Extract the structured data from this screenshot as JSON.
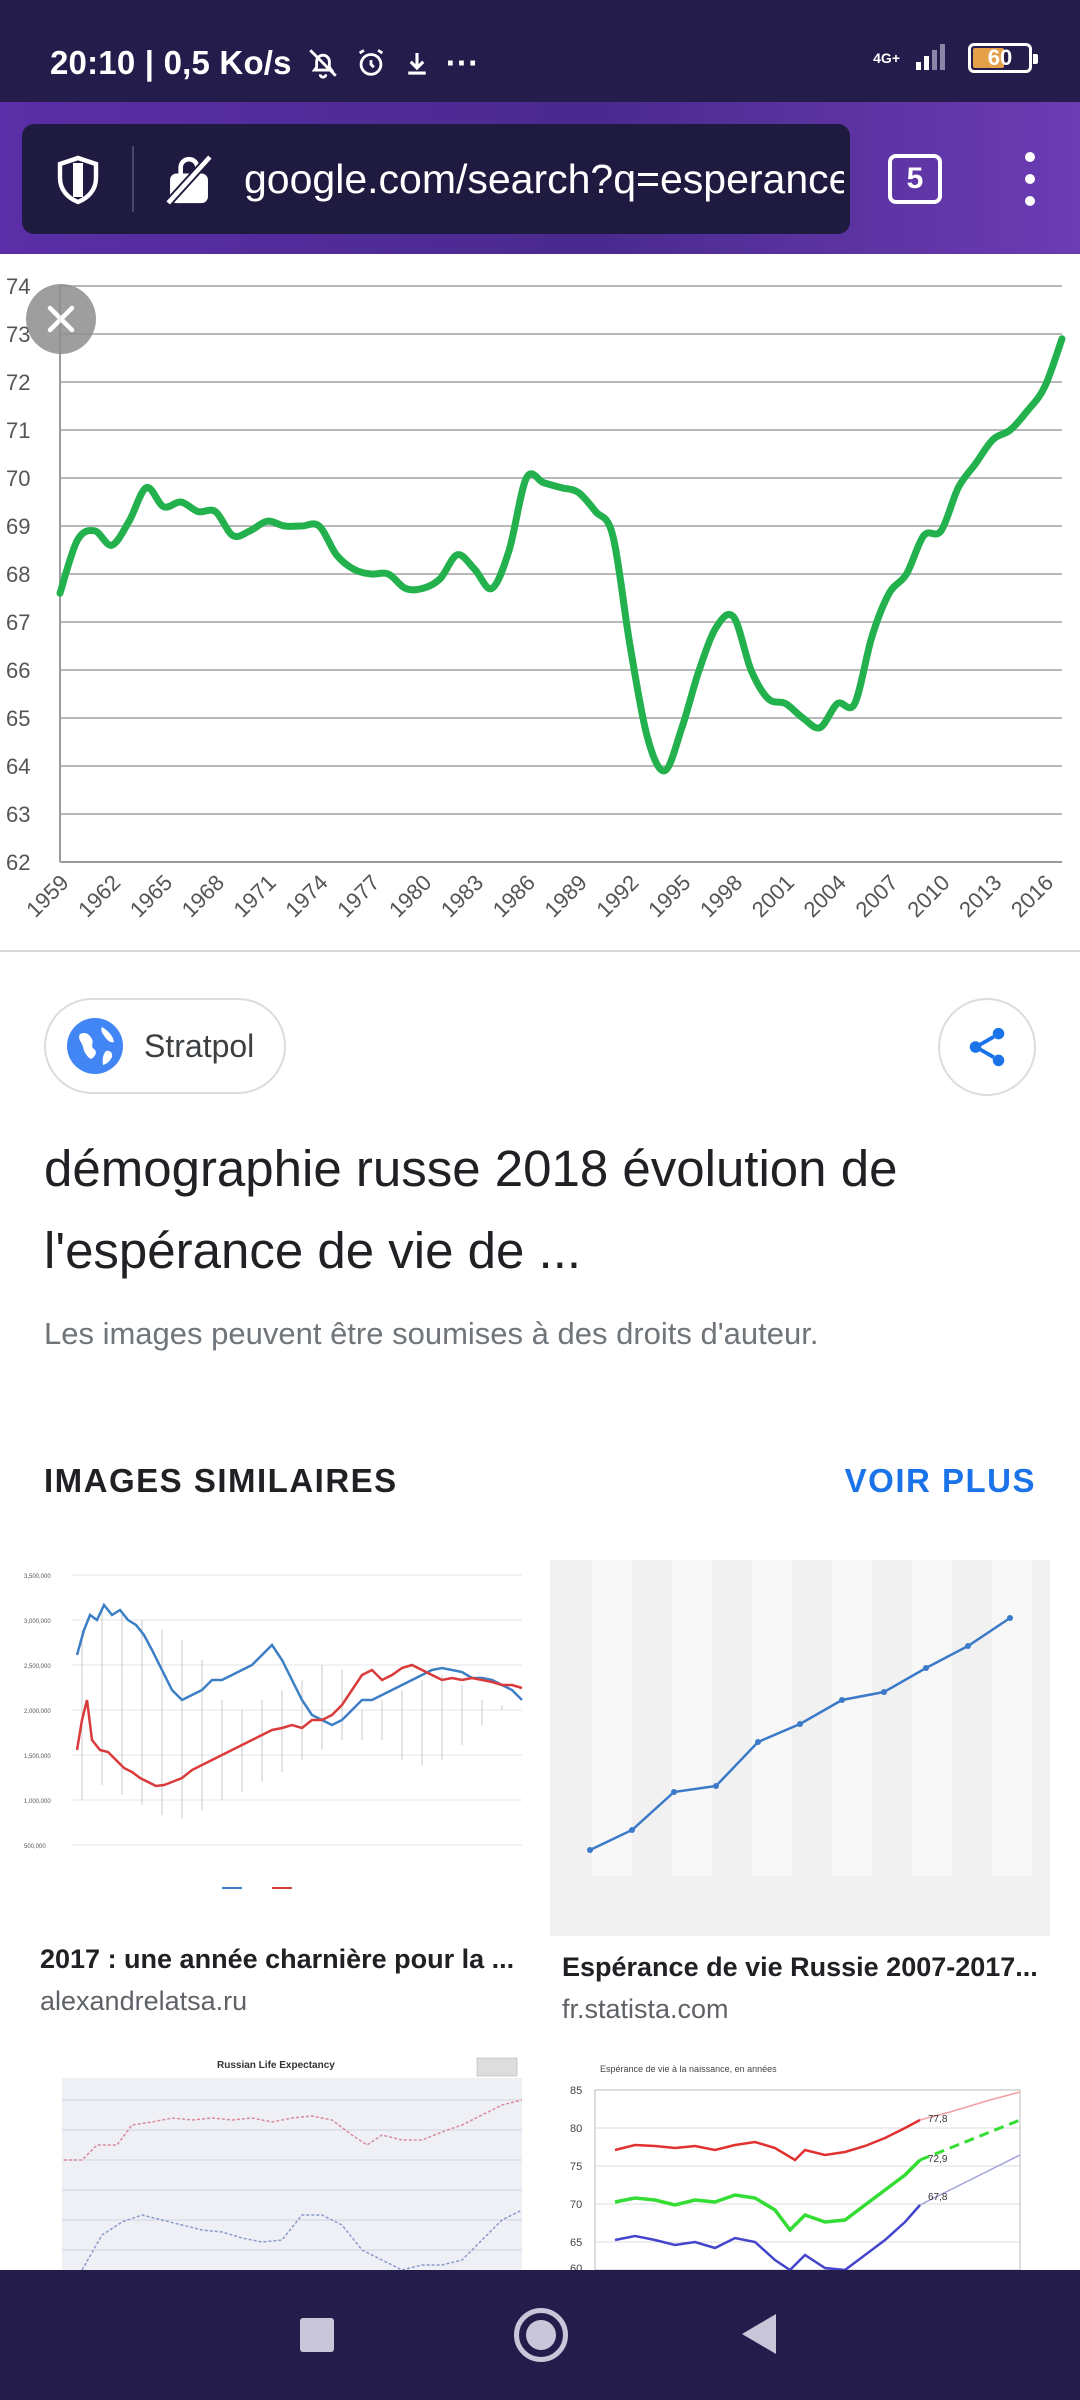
{
  "status_bar": {
    "time_speed": "20:10 | 0,5 Ko/s",
    "more_indicator": "···",
    "network": "4G+",
    "battery": "60",
    "battery_level_percent": 60
  },
  "browser": {
    "url": "google.com/search?q=esperance",
    "tab_count": "5"
  },
  "chart_data": {
    "type": "line",
    "title": "",
    "xlabel": "",
    "ylabel": "",
    "ylim": [
      62,
      74
    ],
    "xlim": [
      1959,
      2017
    ],
    "grid": true,
    "y_ticks": [
      "62",
      "63",
      "64",
      "65",
      "66",
      "67",
      "68",
      "69",
      "70",
      "71",
      "72",
      "73",
      "74"
    ],
    "x_ticks": [
      "1959",
      "1962",
      "1965",
      "1968",
      "1971",
      "1974",
      "1977",
      "1980",
      "1983",
      "1986",
      "1989",
      "1992",
      "1995",
      "1998",
      "2001",
      "2004",
      "2007",
      "2010",
      "2013",
      "2016"
    ],
    "color": "#22b14c",
    "x": [
      1959,
      1960,
      1961,
      1962,
      1963,
      1964,
      1965,
      1966,
      1967,
      1968,
      1969,
      1970,
      1971,
      1972,
      1973,
      1974,
      1975,
      1976,
      1977,
      1978,
      1979,
      1980,
      1981,
      1982,
      1983,
      1984,
      1985,
      1986,
      1987,
      1988,
      1989,
      1990,
      1991,
      1992,
      1993,
      1994,
      1995,
      1996,
      1997,
      1998,
      1999,
      2000,
      2001,
      2002,
      2003,
      2004,
      2005,
      2006,
      2007,
      2008,
      2009,
      2010,
      2011,
      2012,
      2013,
      2014,
      2015,
      2016,
      2017
    ],
    "values": [
      67.6,
      68.7,
      68.9,
      68.6,
      69.1,
      69.8,
      69.4,
      69.5,
      69.3,
      69.3,
      68.8,
      68.9,
      69.1,
      69.0,
      69.0,
      69.0,
      68.4,
      68.1,
      68.0,
      68.0,
      67.7,
      67.7,
      67.9,
      68.4,
      68.1,
      67.7,
      68.5,
      70.0,
      69.9,
      69.8,
      69.7,
      69.3,
      68.8,
      66.5,
      64.6,
      63.9,
      64.8,
      66.0,
      66.9,
      67.1,
      66.0,
      65.4,
      65.3,
      65.0,
      64.8,
      65.3,
      65.3,
      66.7,
      67.6,
      68.0,
      68.8,
      68.9,
      69.8,
      70.3,
      70.8,
      71.0,
      71.4,
      71.9,
      72.9
    ]
  },
  "result": {
    "source": "Stratpol",
    "title": "démographie russe 2018 évolution de l'espérance de vie de ...",
    "copyright_note": "Les images peuvent être soumises à des droits d'auteur."
  },
  "similar": {
    "header": "IMAGES SIMILAIRES",
    "more_label": "VOIR PLUS",
    "cards": [
      {
        "title": "2017 : une année charnière pour la ...",
        "domain": "alexandrelatsa.ru"
      },
      {
        "title": "Espérance de vie Russie 2007-2017...",
        "domain": "fr.statista.com"
      }
    ],
    "thumb3_title": "Russian Life Expectancy",
    "thumb4_subtitle": "Espérance de vie à la naissance, en années",
    "thumb4_labels": [
      "77,8",
      "72,9",
      "67,8"
    ],
    "thumb4_y_ticks": [
      "85",
      "80",
      "75",
      "70",
      "65",
      "60"
    ]
  }
}
